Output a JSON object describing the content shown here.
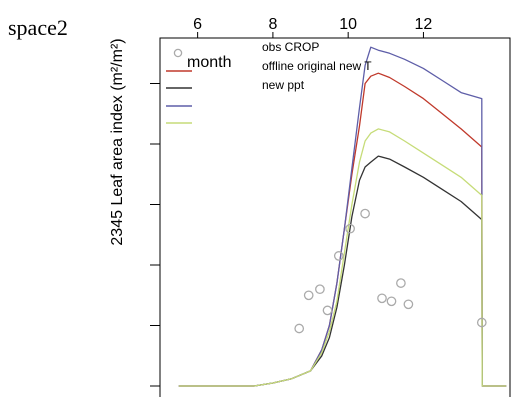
{
  "chart_data": {
    "type": "line",
    "side_label": "space2",
    "ylabel": "2345 Leaf area index (m²/m²)",
    "xlabel": "",
    "x_ticks": [
      6,
      8,
      10,
      12
    ],
    "xlim": [
      5.0,
      14.3
    ],
    "ylim": [
      0,
      5.6
    ],
    "legend": {
      "placement": "top-left",
      "points_label": "month",
      "entries": [
        "obs CROP",
        "offline original new T",
        "new ppt"
      ]
    },
    "series": [
      {
        "color": "#c0392b",
        "x": [
          5.5,
          7.5,
          8.0,
          8.5,
          9.0,
          9.3,
          9.5,
          9.7,
          9.9,
          10.1,
          10.3,
          10.45,
          10.6,
          10.8,
          11.1,
          11.5,
          12.0,
          12.5,
          13.0,
          13.55,
          13.56,
          14.2
        ],
        "y": [
          0,
          0,
          0.05,
          0.12,
          0.25,
          0.6,
          1.0,
          1.7,
          2.6,
          3.5,
          4.3,
          5.0,
          5.12,
          5.17,
          5.1,
          4.95,
          4.75,
          4.5,
          4.25,
          3.95,
          0,
          0
        ]
      },
      {
        "color": "#333333",
        "x": [
          5.5,
          7.5,
          8.0,
          8.5,
          9.0,
          9.3,
          9.5,
          9.7,
          9.9,
          10.1,
          10.3,
          10.45,
          10.6,
          10.8,
          11.1,
          11.5,
          12.0,
          12.5,
          13.0,
          13.55,
          13.56,
          14.2
        ],
        "y": [
          0,
          0,
          0.05,
          0.12,
          0.25,
          0.5,
          0.8,
          1.3,
          2.0,
          2.8,
          3.4,
          3.62,
          3.7,
          3.8,
          3.75,
          3.62,
          3.45,
          3.25,
          3.05,
          2.75,
          0,
          0
        ]
      },
      {
        "color": "#5e5ea8",
        "x": [
          5.5,
          7.5,
          8.0,
          8.5,
          9.0,
          9.3,
          9.5,
          9.7,
          9.9,
          10.1,
          10.3,
          10.45,
          10.6,
          10.8,
          11.1,
          11.5,
          12.0,
          12.5,
          13.0,
          13.55,
          13.56,
          14.2
        ],
        "y": [
          0,
          0,
          0.05,
          0.12,
          0.25,
          0.6,
          1.0,
          1.7,
          2.6,
          3.6,
          4.6,
          5.3,
          5.6,
          5.55,
          5.5,
          5.4,
          5.25,
          5.05,
          4.85,
          4.75,
          0,
          0
        ]
      },
      {
        "color": "#c6dc78",
        "x": [
          5.5,
          7.5,
          8.0,
          8.5,
          9.0,
          9.3,
          9.5,
          9.7,
          9.9,
          10.1,
          10.3,
          10.45,
          10.6,
          10.8,
          11.1,
          11.5,
          12.0,
          12.5,
          13.0,
          13.55,
          13.56,
          14.2
        ],
        "y": [
          0,
          0,
          0.05,
          0.12,
          0.25,
          0.55,
          0.9,
          1.4,
          2.2,
          3.0,
          3.7,
          4.05,
          4.18,
          4.25,
          4.2,
          4.05,
          3.85,
          3.65,
          3.45,
          3.15,
          0,
          0
        ]
      }
    ],
    "points": {
      "color": "#aaaaaa",
      "x": [
        8.7,
        8.95,
        9.25,
        9.45,
        9.75,
        10.05,
        10.45,
        10.9,
        11.15,
        11.4,
        11.6,
        13.55
      ],
      "y": [
        0.95,
        1.5,
        1.6,
        1.25,
        2.15,
        2.6,
        2.85,
        1.45,
        1.4,
        1.7,
        1.35,
        1.05
      ]
    }
  }
}
